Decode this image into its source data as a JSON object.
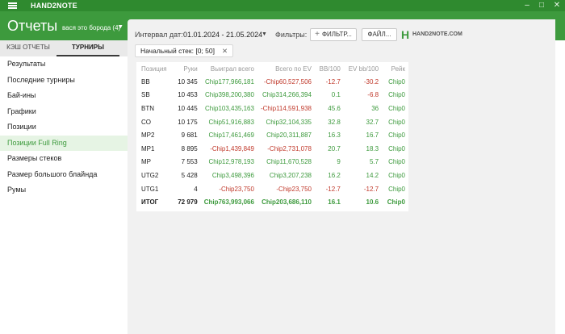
{
  "titlebar": {
    "app_name": "HAND2NOTE",
    "minimize": "–",
    "maximize": "□",
    "close": "✕"
  },
  "header": {
    "title": "Отчеты",
    "user": "вася это борода (4)"
  },
  "left_tabs": {
    "cash": "КЭШ ОТЧЕТЫ",
    "tournaments": "ТУРНИРЫ"
  },
  "menu": [
    {
      "label": "Результаты"
    },
    {
      "label": "Последние турниры"
    },
    {
      "label": "Бай-ины"
    },
    {
      "label": "Графики"
    },
    {
      "label": "Позиции"
    },
    {
      "label": "Позиции Full Ring"
    },
    {
      "label": "Размеры стеков"
    },
    {
      "label": "Размер большого блайнда"
    },
    {
      "label": "Румы"
    }
  ],
  "filters": {
    "interval_label": "Интервал дат:",
    "date_range": "01.01.2024 - 21.05.2024",
    "filters_label": "Фильтры:",
    "filter_button": "ФИЛЬТР...",
    "file_button": "ФАЙЛ...",
    "logo_text": "HAND2NOTE.COM"
  },
  "chip": {
    "label": "Начальный стек: [0; 50]"
  },
  "table": {
    "headers": [
      "Позиция",
      "Руки",
      "Выиграл всего",
      "Всего по EV",
      "BB/100",
      "EV bb/100",
      "Рейк"
    ],
    "rows": [
      [
        "BB",
        "10 345",
        "Chip177,966,181",
        "-Chip60,527,506",
        "-12.7",
        "-30.2",
        "Chip0"
      ],
      [
        "SB",
        "10 453",
        "Chip398,200,380",
        "Chip314,266,394",
        "0.1",
        "-6.8",
        "Chip0"
      ],
      [
        "BTN",
        "10 445",
        "Chip103,435,163",
        "-Chip114,591,938",
        "45.6",
        "36",
        "Chip0"
      ],
      [
        "CO",
        "10 175",
        "Chip51,916,883",
        "Chip32,104,335",
        "32.8",
        "32.7",
        "Chip0"
      ],
      [
        "MP2",
        "9 681",
        "Chip17,461,469",
        "Chip20,311,887",
        "16.3",
        "16.7",
        "Chip0"
      ],
      [
        "MP1",
        "8 895",
        "-Chip1,439,849",
        "-Chip2,731,078",
        "20.7",
        "18.3",
        "Chip0"
      ],
      [
        "MP",
        "7 553",
        "Chip12,978,193",
        "Chip11,670,528",
        "9",
        "5.7",
        "Chip0"
      ],
      [
        "UTG2",
        "5 428",
        "Chip3,498,396",
        "Chip3,207,238",
        "16.2",
        "14.2",
        "Chip0"
      ],
      [
        "UTG1",
        "4",
        "-Chip23,750",
        "-Chip23,750",
        "-12.7",
        "-12.7",
        "Chip0"
      ]
    ],
    "total": [
      "ИТОГ",
      "72 979",
      "Chip763,993,066",
      "Chip203,686,110",
      "16.1",
      "10.6",
      "Chip0"
    ]
  }
}
